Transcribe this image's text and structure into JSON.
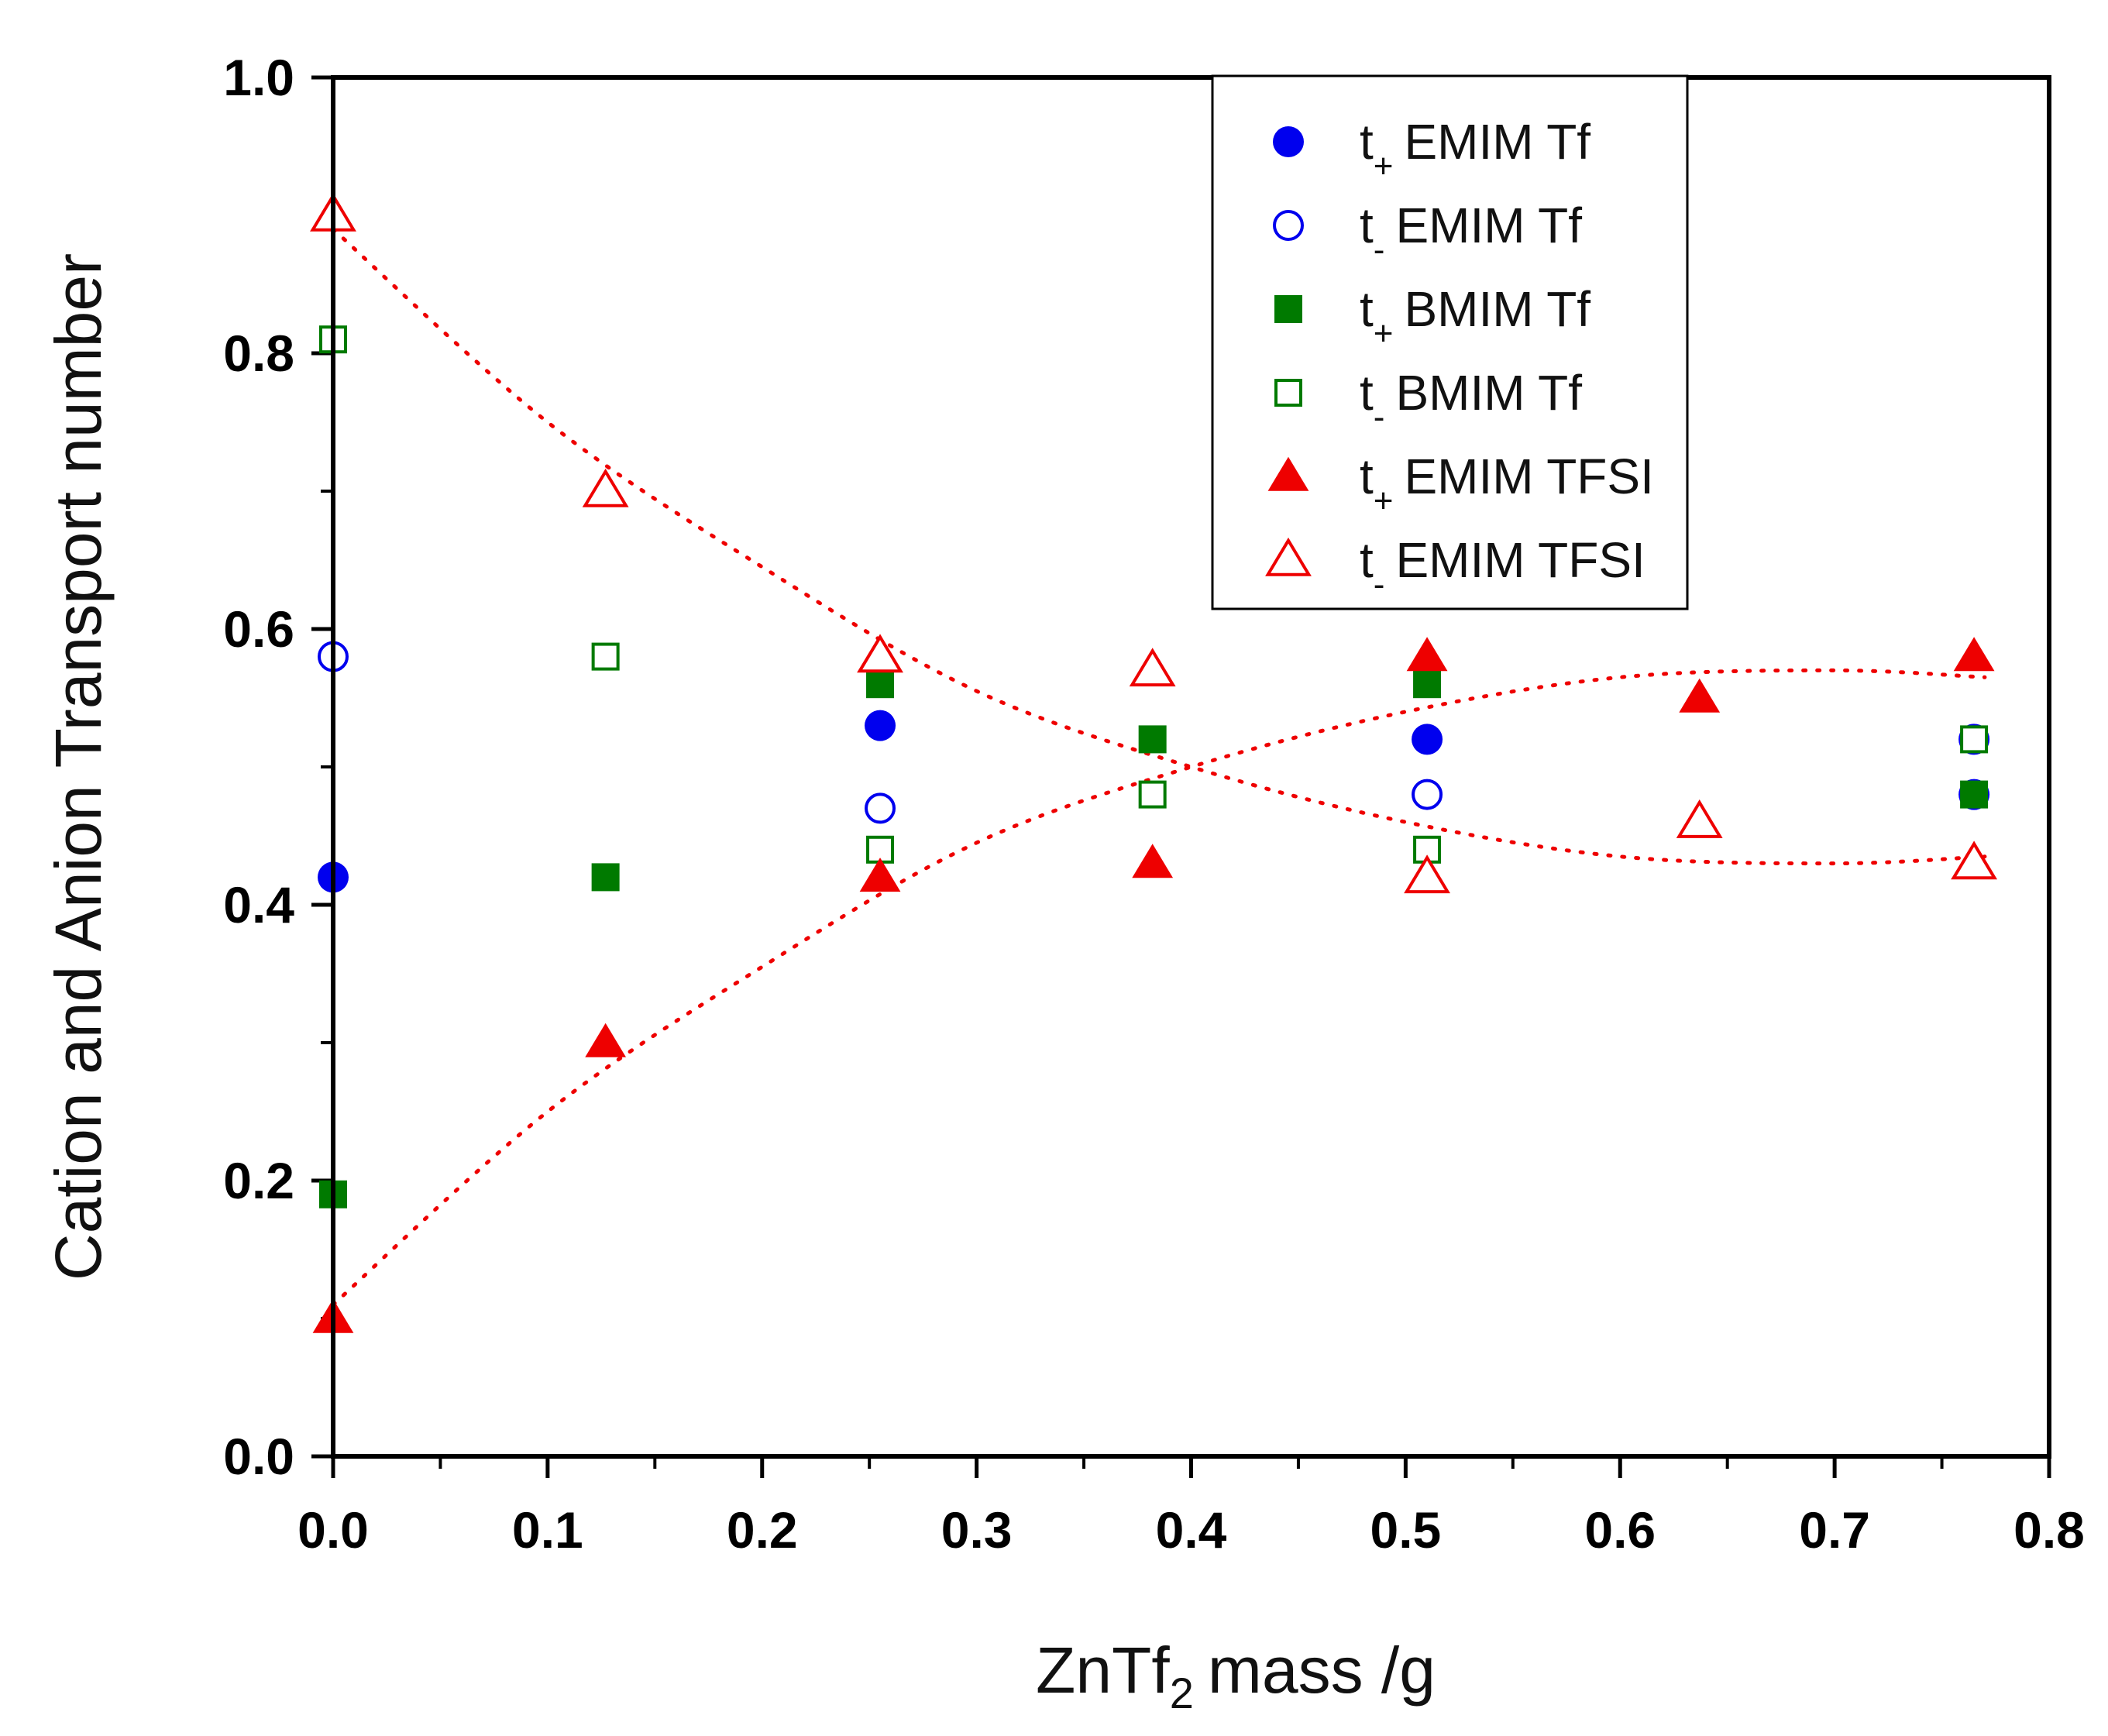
{
  "chart_data": {
    "type": "scatter",
    "xlabel": "ZnTf",
    "xlabel_sub": "2",
    "xlabel_suffix": "mass /g",
    "ylabel": "Cation and Anion Transport number",
    "xlim": [
      0.0,
      0.8
    ],
    "ylim": [
      0.0,
      1.0
    ],
    "xticks": [
      "0.0",
      "0.1",
      "0.2",
      "0.3",
      "0.4",
      "0.5",
      "0.6",
      "0.7",
      "0.8"
    ],
    "yticks": [
      "0.0",
      "0.2",
      "0.4",
      "0.6",
      "0.8",
      "1.0"
    ],
    "legend_position": "top-right",
    "series": [
      {
        "name": "t+ EMIM Tf",
        "label_t": "t",
        "label_sub": "+",
        "label_rest": "EMIM Tf",
        "marker": "circle",
        "filled": true,
        "color": "#0000ee",
        "x": [
          0.0,
          0.255,
          0.51,
          0.765
        ],
        "y": [
          0.42,
          0.53,
          0.52,
          0.48
        ]
      },
      {
        "name": "t- EMIM Tf",
        "label_t": "t",
        "label_sub": "-",
        "label_rest": "EMIM Tf",
        "marker": "circle",
        "filled": false,
        "color": "#0000ee",
        "x": [
          0.0,
          0.255,
          0.51,
          0.765
        ],
        "y": [
          0.58,
          0.47,
          0.48,
          0.52
        ]
      },
      {
        "name": "t+ BMIM Tf",
        "label_t": "t",
        "label_sub": "+",
        "label_rest": "BMIM Tf",
        "marker": "square",
        "filled": true,
        "color": "#007a00",
        "x": [
          0.0,
          0.127,
          0.255,
          0.382,
          0.51,
          0.765
        ],
        "y": [
          0.19,
          0.42,
          0.56,
          0.52,
          0.56,
          0.48
        ]
      },
      {
        "name": "t- BMIM Tf",
        "label_t": "t",
        "label_sub": "-",
        "label_rest": "BMIM Tf",
        "marker": "square",
        "filled": false,
        "color": "#007a00",
        "x": [
          0.0,
          0.127,
          0.255,
          0.382,
          0.51,
          0.765
        ],
        "y": [
          0.81,
          0.58,
          0.44,
          0.48,
          0.44,
          0.52
        ]
      },
      {
        "name": "t+ EMIM TFSI",
        "label_t": "t",
        "label_sub": "+",
        "label_rest": "EMIM TFSI",
        "marker": "triangle",
        "filled": true,
        "color": "#ee0000",
        "x": [
          0.0,
          0.127,
          0.255,
          0.382,
          0.51,
          0.637,
          0.765
        ],
        "y": [
          0.1,
          0.3,
          0.42,
          0.43,
          0.58,
          0.55,
          0.58
        ]
      },
      {
        "name": "t- EMIM TFSI",
        "label_t": "t",
        "label_sub": "-",
        "label_rest": "EMIM TFSI",
        "marker": "triangle",
        "filled": false,
        "color": "#ee0000",
        "x": [
          0.0,
          0.127,
          0.255,
          0.382,
          0.51,
          0.637,
          0.765
        ],
        "y": [
          0.9,
          0.7,
          0.58,
          0.57,
          0.42,
          0.46,
          0.43
        ]
      }
    ],
    "trend_lines": [
      {
        "name": "cation trend",
        "color": "#ee0000",
        "x": [
          0.0,
          0.1,
          0.2,
          0.3,
          0.4,
          0.5,
          0.6,
          0.7,
          0.77
        ],
        "y": [
          0.11,
          0.25,
          0.355,
          0.445,
          0.5,
          0.54,
          0.565,
          0.57,
          0.565
        ]
      },
      {
        "name": "anion trend",
        "color": "#ee0000",
        "x": [
          0.0,
          0.1,
          0.2,
          0.3,
          0.4,
          0.5,
          0.6,
          0.7,
          0.77
        ],
        "y": [
          0.89,
          0.75,
          0.645,
          0.555,
          0.5,
          0.46,
          0.435,
          0.43,
          0.435
        ]
      }
    ]
  }
}
